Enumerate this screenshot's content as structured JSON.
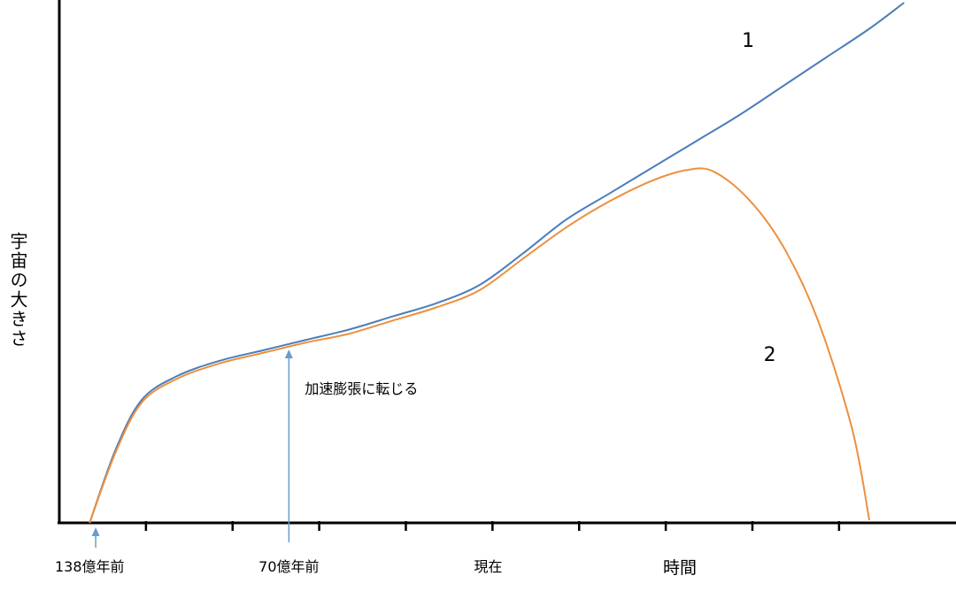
{
  "chart_data": {
    "type": "line",
    "xlabel": "時間",
    "ylabel": "宇宙の大きさ",
    "tick_labels": [
      {
        "x": 0,
        "label": "138億年前"
      },
      {
        "x": 2.3,
        "label": "70億年前"
      },
      {
        "x": 4.6,
        "label": "現在"
      }
    ],
    "xlim": [
      -0.35,
      10
    ],
    "ylim": [
      0,
      10
    ],
    "grid": false,
    "legend": "none",
    "series": [
      {
        "name": "1",
        "color": "#4a7ebb",
        "points": [
          [
            0,
            0
          ],
          [
            0.3,
            1.4
          ],
          [
            0.6,
            2.35
          ],
          [
            1.0,
            2.8
          ],
          [
            1.5,
            3.1
          ],
          [
            2.0,
            3.3
          ],
          [
            2.5,
            3.5
          ],
          [
            3.0,
            3.7
          ],
          [
            3.5,
            3.95
          ],
          [
            4.0,
            4.2
          ],
          [
            4.5,
            4.55
          ],
          [
            5.0,
            5.15
          ],
          [
            5.5,
            5.8
          ],
          [
            6.0,
            6.3
          ],
          [
            6.5,
            6.8
          ],
          [
            7.0,
            7.3
          ],
          [
            7.5,
            7.8
          ],
          [
            8.0,
            8.35
          ],
          [
            8.5,
            8.9
          ],
          [
            9.0,
            9.45
          ],
          [
            9.4,
            9.95
          ]
        ]
      },
      {
        "name": "2",
        "color": "#ee8f3c",
        "points": [
          [
            0,
            0
          ],
          [
            0.3,
            1.35
          ],
          [
            0.6,
            2.3
          ],
          [
            1.0,
            2.75
          ],
          [
            1.5,
            3.05
          ],
          [
            2.0,
            3.25
          ],
          [
            2.5,
            3.45
          ],
          [
            3.0,
            3.62
          ],
          [
            3.5,
            3.87
          ],
          [
            4.0,
            4.12
          ],
          [
            4.5,
            4.45
          ],
          [
            5.0,
            5.05
          ],
          [
            5.5,
            5.65
          ],
          [
            6.0,
            6.15
          ],
          [
            6.5,
            6.55
          ],
          [
            6.9,
            6.75
          ],
          [
            7.2,
            6.72
          ],
          [
            7.6,
            6.2
          ],
          [
            8.0,
            5.3
          ],
          [
            8.4,
            3.9
          ],
          [
            8.8,
            1.8
          ],
          [
            9.0,
            0.05
          ]
        ]
      }
    ],
    "series_labels": [
      {
        "text": "1",
        "x": 7.6,
        "y": 9.1
      },
      {
        "text": "2",
        "x": 7.85,
        "y": 3.1
      }
    ],
    "annotations": [
      {
        "text": "加速膨張に転じる",
        "x": 2.3,
        "y": 3.35,
        "arrow": true
      },
      {
        "text": "",
        "x": 0.07,
        "y": -0.05,
        "arrow": true
      }
    ]
  }
}
